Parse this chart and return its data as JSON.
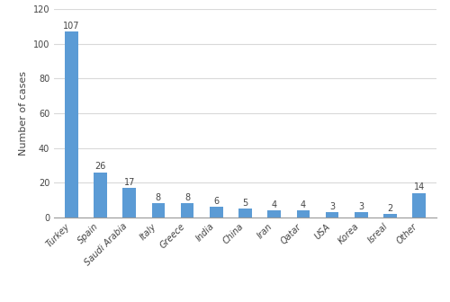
{
  "categories": [
    "Turkey",
    "Spain",
    "Saudi Arabia",
    "Italy",
    "Greece",
    "India",
    "China",
    "Iran",
    "Qatar",
    "USA",
    "Korea",
    "Isreal",
    "Other"
  ],
  "values": [
    107,
    26,
    17,
    8,
    8,
    6,
    5,
    4,
    4,
    3,
    3,
    2,
    14
  ],
  "bar_color": "#5b9bd5",
  "ylabel": "Number of cases",
  "ylim": [
    0,
    120
  ],
  "yticks": [
    0,
    20,
    40,
    60,
    80,
    100,
    120
  ],
  "label_fontsize": 8,
  "tick_fontsize": 7,
  "value_label_fontsize": 7,
  "background_color": "#ffffff",
  "grid_color": "#d9d9d9",
  "bar_width": 0.45,
  "figsize": [
    5.0,
    3.36
  ],
  "dpi": 100
}
